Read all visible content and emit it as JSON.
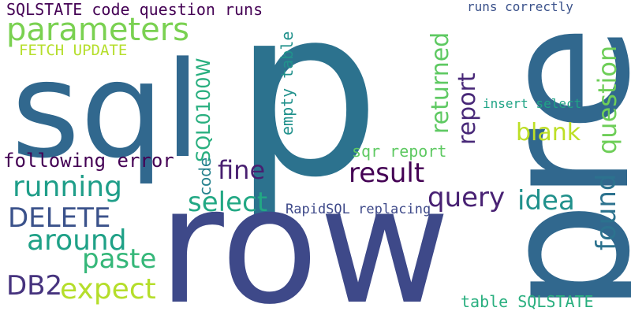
{
  "words": [
    {
      "id": "sqlpre-sql",
      "text": "sql",
      "color": "#31688e"
    },
    {
      "id": "sqlpre-p",
      "text": "p",
      "color": "#2c728e"
    },
    {
      "id": "pre",
      "text": "pre",
      "color": "#31688e"
    },
    {
      "id": "row",
      "text": "row",
      "color": "#3e4989"
    },
    {
      "id": "sqlstate-code-question-runs",
      "text": "SQLSTATE code question runs",
      "color": "#440154"
    },
    {
      "id": "parameters",
      "text": "parameters",
      "color": "#7ad151"
    },
    {
      "id": "fetch-update",
      "text": "FETCH UPDATE",
      "color": "#b5de2b"
    },
    {
      "id": "runs-correctly",
      "text": "runs correctly",
      "color": "#3b528b"
    },
    {
      "id": "empty-table",
      "text": "empty table",
      "color": "#21918c"
    },
    {
      "id": "sql0100w",
      "text": "SQL0100W",
      "color": "#29af7f"
    },
    {
      "id": "returned",
      "text": "returned",
      "color": "#5ec962"
    },
    {
      "id": "report",
      "text": "report",
      "color": "#482878"
    },
    {
      "id": "question",
      "text": "question",
      "color": "#6ece58"
    },
    {
      "id": "insert-select",
      "text": "insert select",
      "color": "#20a486"
    },
    {
      "id": "blank",
      "text": "blank",
      "color": "#bddf26"
    },
    {
      "id": "sqr-report",
      "text": "sqr report",
      "color": "#5ec962"
    },
    {
      "id": "fine",
      "text": "fine",
      "color": "#481f70"
    },
    {
      "id": "following-error",
      "text": "following error",
      "color": "#440154"
    },
    {
      "id": "code",
      "text": "code",
      "color": "#26828e"
    },
    {
      "id": "result",
      "text": "result",
      "color": "#440154"
    },
    {
      "id": "running",
      "text": "running",
      "color": "#1f9e89"
    },
    {
      "id": "query",
      "text": "query",
      "color": "#482173"
    },
    {
      "id": "idea",
      "text": "idea",
      "color": "#21918c"
    },
    {
      "id": "select",
      "text": "select",
      "color": "#22a884"
    },
    {
      "id": "found",
      "text": "found",
      "color": "#2c728e"
    },
    {
      "id": "delete",
      "text": "DELETE",
      "color": "#3b528b"
    },
    {
      "id": "rapidsql-replacing",
      "text": "RapidSQL replacing",
      "color": "#3e4989"
    },
    {
      "id": "around",
      "text": "around",
      "color": "#1fa187"
    },
    {
      "id": "paste",
      "text": "paste",
      "color": "#35b779"
    },
    {
      "id": "db2",
      "text": "DB2",
      "color": "#46337e"
    },
    {
      "id": "expect",
      "text": "expect",
      "color": "#b5de2b"
    },
    {
      "id": "table-sqlstate",
      "text": "table SQLSTATE",
      "color": "#29af7f"
    }
  ]
}
